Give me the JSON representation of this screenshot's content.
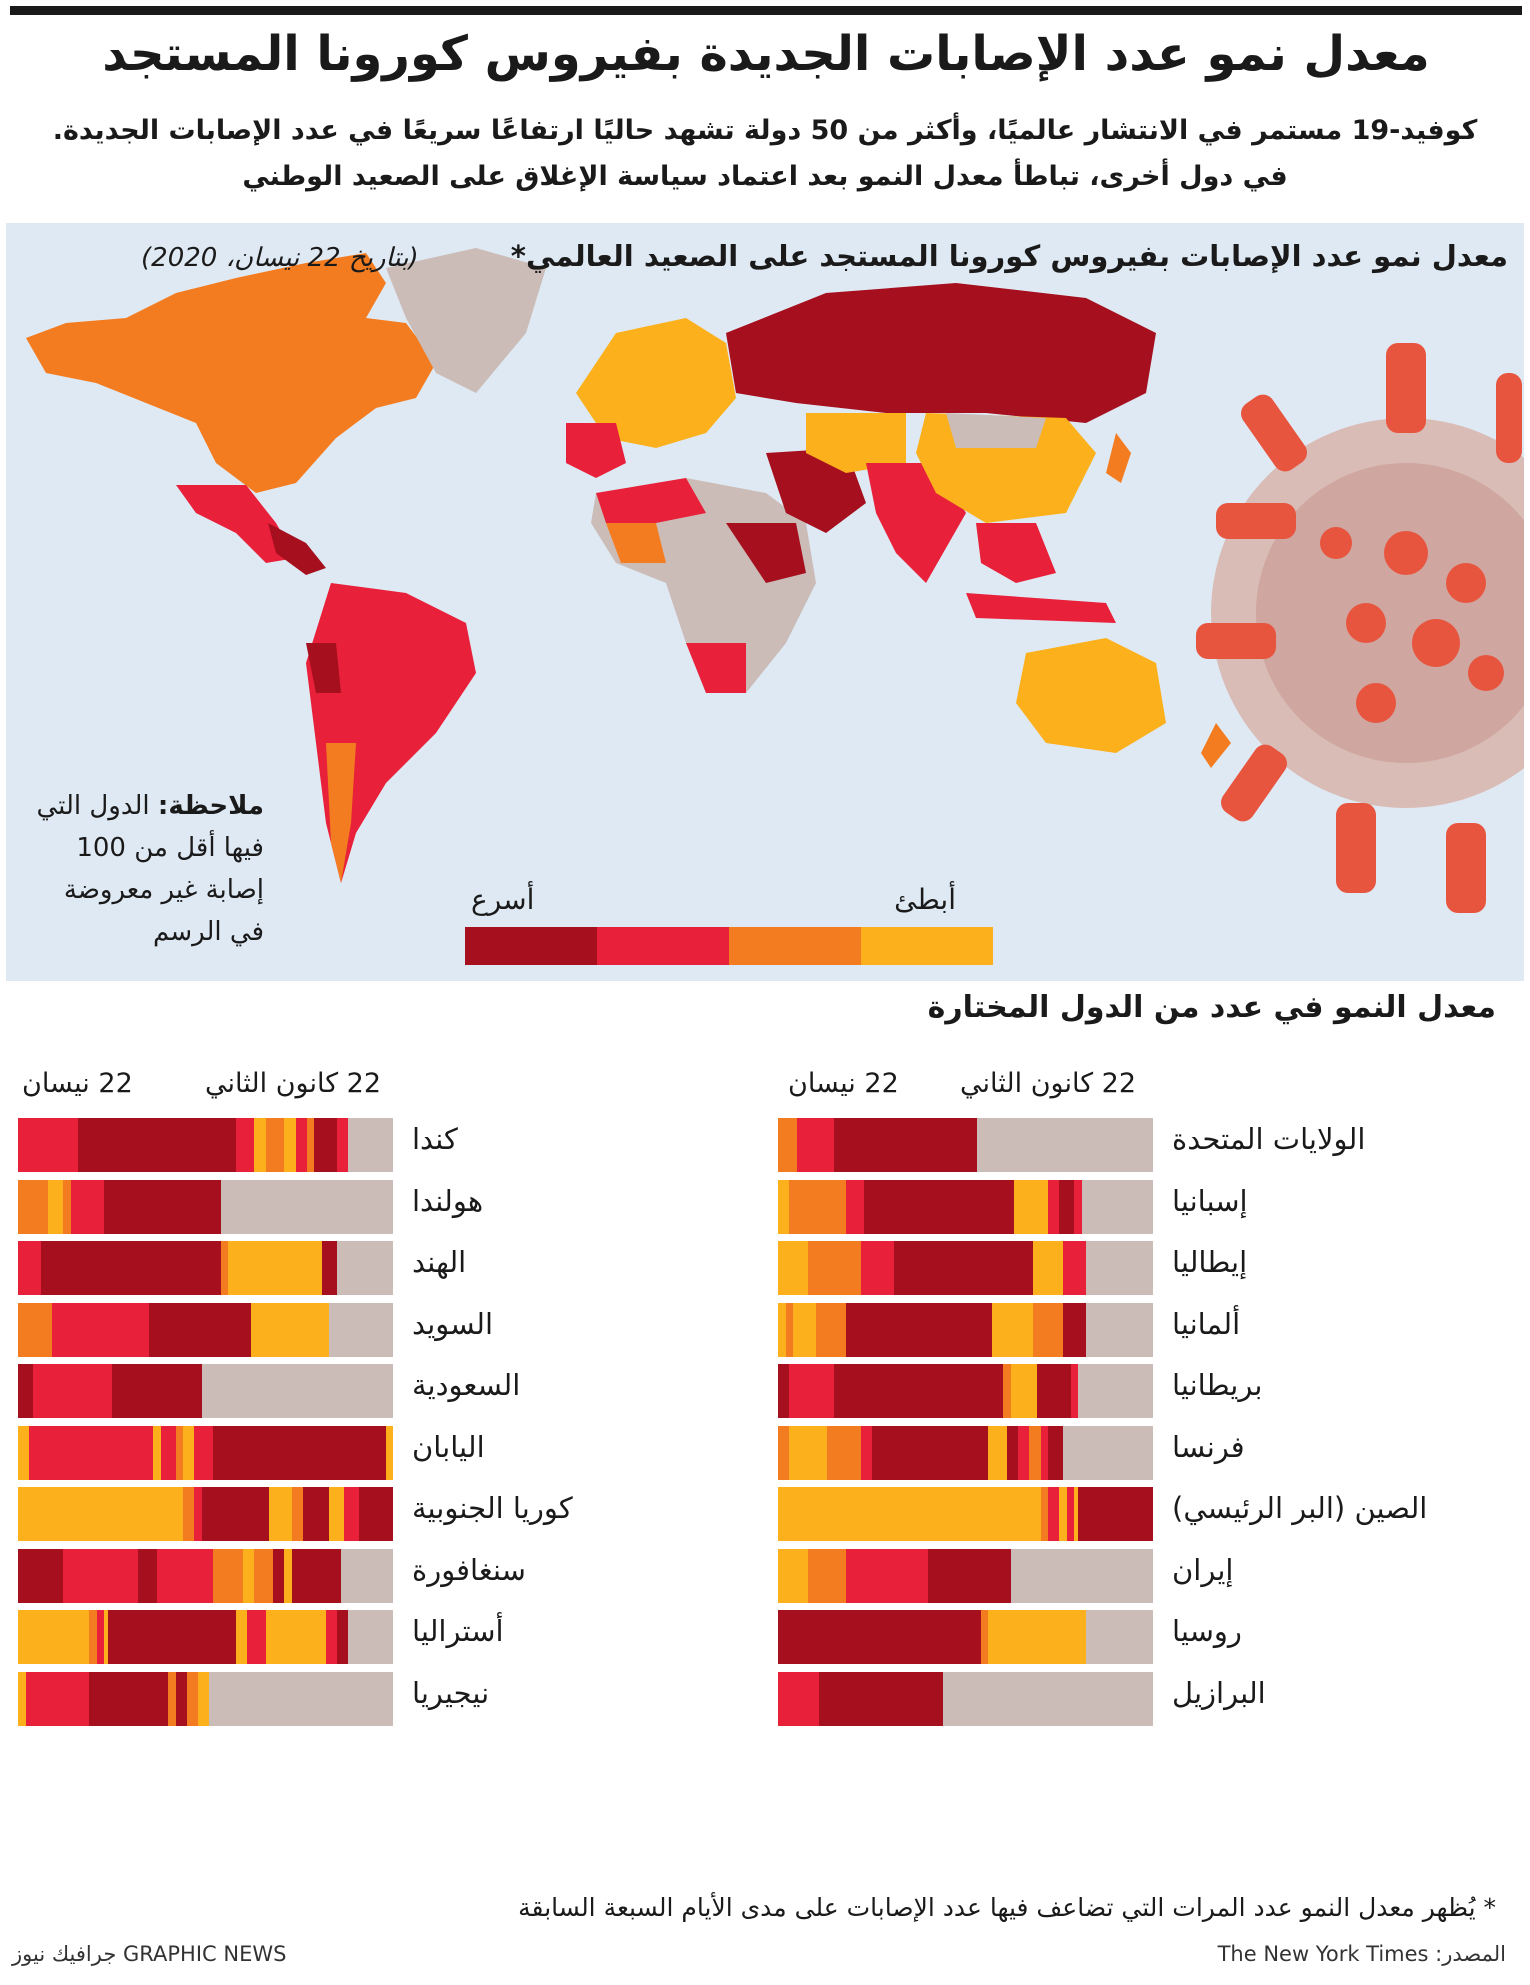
{
  "title": "معدل نمو عدد الإصابات الجديدة بفيروس كورونا المستجد",
  "subtitle_line1": "كوفيد-19 مستمر في الانتشار عالميًا، وأكثر من 50 دولة تشهد حاليًا ارتفاعًا سريعًا في عدد الإصابات الجديدة.",
  "subtitle_line2": "في دول أخرى، تباطأ معدل النمو بعد اعتماد سياسة الإغلاق على الصعيد الوطني",
  "map": {
    "title": "معدل نمو عدد الإصابات بفيروس كورونا المستجد على الصعيد العالمي*",
    "date": "(بتاريخ 22 نيسان، 2020)",
    "note_label": "ملاحظة:",
    "note_text": "الدول التي فيها أقل من 100 إصابة غير معروضة في الرسم",
    "legend_slow": "أبطئ",
    "legend_fast": "أسرع"
  },
  "colors": {
    "fastest": "#a50f1e",
    "fast": "#e8203a",
    "slow": "#f47c20",
    "slowest": "#fbb01c",
    "none": "#cbbcb7",
    "ocean": "#dfe9f3"
  },
  "section_title": "معدل النمو في عدد من الدول المختارة",
  "header_jan": "22 كانون الثاني",
  "header_apr": "22 نيسان",
  "footnote": "* يُظهر معدل النمو عدد المرات التي تضاعف فيها عدد الإصابات على مدى الأيام السبعة السابقة",
  "credit": "GRAPHIC NEWS جرافيك نيوز",
  "source": "المصدر: The New York Times",
  "chart_data": [
    {
      "type": "bar",
      "categories": [
        "كندا",
        "هولندا",
        "الهند",
        "السويد",
        "السعودية",
        "اليابان",
        "كوريا الجنوبية",
        "سنغافورة",
        "أستراليا",
        "نيجيريا"
      ],
      "series": [
        {
          "name": "كندا",
          "values": [
            [
              "fast",
              16
            ],
            [
              "fastest",
              42
            ],
            [
              "fast",
              5
            ],
            [
              "slowest",
              3
            ],
            [
              "slow",
              5
            ],
            [
              "slowest",
              3
            ],
            [
              "fast",
              3
            ],
            [
              "slow",
              2
            ],
            [
              "fastest",
              6
            ],
            [
              "fast",
              3
            ],
            [
              "none",
              12
            ]
          ]
        },
        {
          "name": "هولندا",
          "values": [
            [
              "slow",
              8
            ],
            [
              "slowest",
              4
            ],
            [
              "slow",
              2
            ],
            [
              "fast",
              9
            ],
            [
              "fastest",
              31
            ],
            [
              "none",
              46
            ]
          ]
        },
        {
          "name": "الهند",
          "values": [
            [
              "fast",
              6
            ],
            [
              "fastest",
              48
            ],
            [
              "slow",
              2
            ],
            [
              "slowest",
              25
            ],
            [
              "fastest",
              4
            ],
            [
              "none",
              15
            ]
          ]
        },
        {
          "name": "السويد",
          "values": [
            [
              "slow",
              9
            ],
            [
              "fast",
              26
            ],
            [
              "fastest",
              27
            ],
            [
              "slowest",
              21
            ],
            [
              "none",
              17
            ]
          ]
        },
        {
          "name": "السعودية",
          "values": [
            [
              "fastest",
              4
            ],
            [
              "fast",
              21
            ],
            [
              "fastest",
              24
            ],
            [
              "none",
              51
            ]
          ]
        },
        {
          "name": "اليابان",
          "values": [
            [
              "slowest",
              3
            ],
            [
              "fast",
              33
            ],
            [
              "slowest",
              2
            ],
            [
              "fast",
              4
            ],
            [
              "slow",
              2
            ],
            [
              "slowest",
              3
            ],
            [
              "fast",
              5
            ],
            [
              "fastest",
              46
            ],
            [
              "slowest",
              2
            ]
          ]
        },
        {
          "name": "كوريا الجنوبية",
          "values": [
            [
              "slowest",
              44
            ],
            [
              "slow",
              3
            ],
            [
              "fast",
              2
            ],
            [
              "fastest",
              18
            ],
            [
              "slowest",
              6
            ],
            [
              "slow",
              3
            ],
            [
              "fastest",
              7
            ],
            [
              "slowest",
              4
            ],
            [
              "fast",
              4
            ],
            [
              "fastest",
              9
            ]
          ]
        },
        {
          "name": "سنغافورة",
          "values": [
            [
              "fastest",
              12
            ],
            [
              "fast",
              20
            ],
            [
              "fastest",
              5
            ],
            [
              "fast",
              15
            ],
            [
              "slow",
              8
            ],
            [
              "slowest",
              3
            ],
            [
              "slow",
              5
            ],
            [
              "fastest",
              3
            ],
            [
              "slowest",
              2
            ],
            [
              "fastest",
              13
            ],
            [
              "none",
              14
            ]
          ]
        },
        {
          "name": "أستراليا",
          "values": [
            [
              "slowest",
              19
            ],
            [
              "slow",
              2
            ],
            [
              "fast",
              2
            ],
            [
              "slowest",
              1
            ],
            [
              "fastest",
              34
            ],
            [
              "slowest",
              3
            ],
            [
              "fast",
              5
            ],
            [
              "slowest",
              16
            ],
            [
              "fast",
              3
            ],
            [
              "fastest",
              3
            ],
            [
              "none",
              12
            ]
          ]
        },
        {
          "name": "نيجيريا",
          "values": [
            [
              "slowest",
              2
            ],
            [
              "fast",
              17
            ],
            [
              "fastest",
              21
            ],
            [
              "slow",
              2
            ],
            [
              "fastest",
              3
            ],
            [
              "slow",
              3
            ],
            [
              "slowest",
              3
            ],
            [
              "none",
              49
            ]
          ]
        }
      ]
    },
    {
      "type": "bar",
      "categories": [
        "الولايات المتحدة",
        "إسبانيا",
        "إيطاليا",
        "ألمانيا",
        "بريطانيا",
        "فرنسا",
        "الصين (البر الرئيسي)",
        "إيران",
        "روسيا",
        "البرازيل"
      ],
      "series": [
        {
          "name": "الولايات المتحدة",
          "values": [
            [
              "slow",
              5
            ],
            [
              "fast",
              10
            ],
            [
              "fastest",
              38
            ],
            [
              "none",
              47
            ]
          ]
        },
        {
          "name": "إسبانيا",
          "values": [
            [
              "slowest",
              3
            ],
            [
              "slow",
              15
            ],
            [
              "fast",
              5
            ],
            [
              "fastest",
              40
            ],
            [
              "slowest",
              9
            ],
            [
              "fast",
              3
            ],
            [
              "fastest",
              4
            ],
            [
              "fast",
              2
            ],
            [
              "none",
              19
            ]
          ]
        },
        {
          "name": "إيطاليا",
          "values": [
            [
              "slowest",
              8
            ],
            [
              "slow",
              14
            ],
            [
              "fast",
              9
            ],
            [
              "fastest",
              37
            ],
            [
              "slowest",
              8
            ],
            [
              "fast",
              6
            ],
            [
              "none",
              18
            ]
          ]
        },
        {
          "name": "ألمانيا",
          "values": [
            [
              "slowest",
              2
            ],
            [
              "slow",
              2
            ],
            [
              "slowest",
              6
            ],
            [
              "slow",
              8
            ],
            [
              "fastest",
              39
            ],
            [
              "slowest",
              11
            ],
            [
              "slow",
              8
            ],
            [
              "fastest",
              6
            ],
            [
              "none",
              18
            ]
          ]
        },
        {
          "name": "بريطانيا",
          "values": [
            [
              "fastest",
              3
            ],
            [
              "fast",
              12
            ],
            [
              "fastest",
              45
            ],
            [
              "slow",
              2
            ],
            [
              "slowest",
              7
            ],
            [
              "fastest",
              9
            ],
            [
              "fast",
              2
            ],
            [
              "none",
              20
            ]
          ]
        },
        {
          "name": "فرنسا",
          "values": [
            [
              "slow",
              3
            ],
            [
              "slowest",
              10
            ],
            [
              "slow",
              9
            ],
            [
              "fast",
              3
            ],
            [
              "fastest",
              31
            ],
            [
              "slowest",
              5
            ],
            [
              "fastest",
              3
            ],
            [
              "fast",
              3
            ],
            [
              "slow",
              3
            ],
            [
              "fast",
              2
            ],
            [
              "fastest",
              4
            ],
            [
              "none",
              24
            ]
          ]
        },
        {
          "name": "الصين (البر الرئيسي)",
          "values": [
            [
              "slowest",
              70
            ],
            [
              "slow",
              2
            ],
            [
              "fast",
              3
            ],
            [
              "slowest",
              2
            ],
            [
              "fast",
              2
            ],
            [
              "slowest",
              1
            ],
            [
              "fastest",
              20
            ]
          ]
        },
        {
          "name": "إيران",
          "values": [
            [
              "slowest",
              8
            ],
            [
              "slow",
              10
            ],
            [
              "fast",
              22
            ],
            [
              "fastest",
              22
            ],
            [
              "none",
              38
            ]
          ]
        },
        {
          "name": "روسيا",
          "values": [
            [
              "fastest",
              54
            ],
            [
              "slow",
              2
            ],
            [
              "slowest",
              26
            ],
            [
              "none",
              18
            ]
          ]
        },
        {
          "name": "البرازيل",
          "values": [
            [
              "fast",
              11
            ],
            [
              "fastest",
              33
            ],
            [
              "none",
              56
            ]
          ]
        }
      ]
    }
  ]
}
